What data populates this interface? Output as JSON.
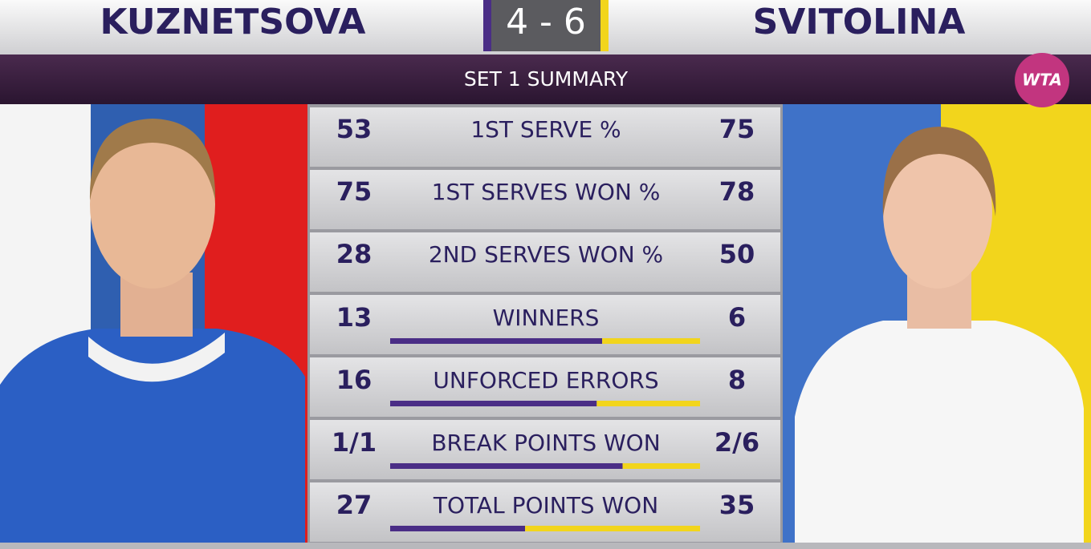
{
  "header": {
    "player_left": "KUZNETSOVA",
    "score": "4 - 6",
    "player_right": "SVITOLINA",
    "subtitle": "SET 1 SUMMARY",
    "logo": "WTA"
  },
  "stats": [
    {
      "left": "53",
      "label": "1ST SERVE %",
      "right": "75"
    },
    {
      "left": "75",
      "label": "1ST SERVES WON %",
      "right": "78"
    },
    {
      "left": "28",
      "label": "2ND SERVES WON %",
      "right": "50"
    },
    {
      "left": "13",
      "label": "WINNERS",
      "right": "6",
      "bar": true
    },
    {
      "left": "16",
      "label": "UNFORCED ERRORS",
      "right": "8",
      "bar": true
    },
    {
      "left": "1/1",
      "label": "BREAK POINTS WON",
      "right": "2/6",
      "bar": true
    },
    {
      "left": "27",
      "label": "TOTAL POINTS WON",
      "right": "35",
      "bar": true
    }
  ],
  "colors": {
    "left": "#4a2d86",
    "right": "#f2d51c"
  }
}
